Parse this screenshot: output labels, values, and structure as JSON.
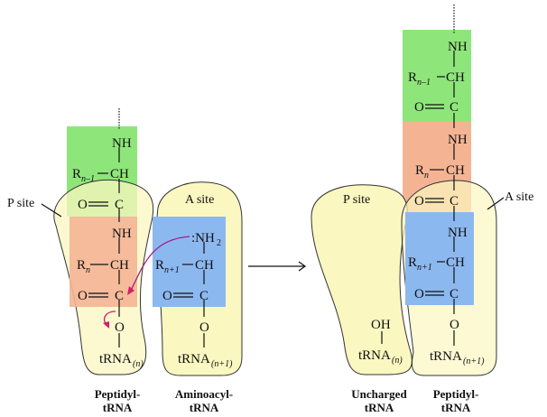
{
  "colors": {
    "residue_n_minus_1": "#8ee67a",
    "residue_n": "#f4b494",
    "residue_n_plus_1": "#8cb8f0",
    "ribosome_site": "#fbf7c0",
    "attack_arrow": "#d0206a"
  },
  "before": {
    "p_site_label": "P  site",
    "a_site_label": "A site",
    "peptidyl": {
      "nh1": "NH",
      "r1": "R",
      "r1_sub": "n–1",
      "ch1": "CH",
      "oc1": "O",
      "c1": "C",
      "nh2": "NH",
      "r2": "R",
      "r2_sub": "n",
      "ch2": "CH",
      "oc2": "O",
      "c2": "C",
      "o": "O",
      "trna": "tRNA",
      "trna_sub": "(n)"
    },
    "aminoacyl": {
      "nh2": ":NH",
      "nh2_sub": "2",
      "r": "R",
      "r_sub": "n+1",
      "ch": "CH",
      "oc": "O",
      "c": "C",
      "o": "O",
      "trna": "tRNA",
      "trna_sub": "(n+1)"
    },
    "caption_left": [
      "Peptidyl-",
      "tRNA"
    ],
    "caption_right": [
      "Aminoacyl-",
      "tRNA"
    ]
  },
  "after": {
    "p_site_label": "P site",
    "a_site_label": "A  site",
    "peptidyl": {
      "nh1": "NH",
      "r1": "R",
      "r1_sub": "n–1",
      "ch1": "CH",
      "oc1": "O",
      "c1": "C",
      "nh2": "NH",
      "r2": "R",
      "r2_sub": "n",
      "ch2": "CH",
      "oc2": "O",
      "c2": "C",
      "nh3": "NH",
      "r3": "R",
      "r3_sub": "n+1",
      "ch3": "CH",
      "oc3": "O",
      "c3": "C",
      "o": "O",
      "trna": "tRNA",
      "trna_sub": "(n+1)"
    },
    "uncharged": {
      "oh": "OH",
      "trna": "tRNA",
      "trna_sub": "(n)"
    },
    "caption_left": [
      "Uncharged",
      "tRNA"
    ],
    "caption_right": [
      "Peptidyl-",
      "tRNA"
    ]
  }
}
